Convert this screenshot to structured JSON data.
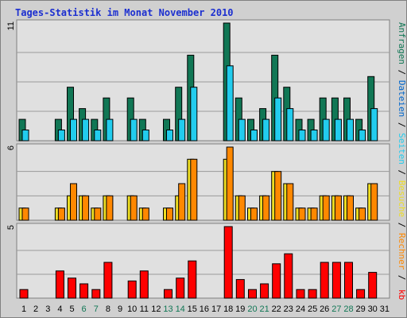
{
  "title": "Tages-Statistik im Monat November 2010",
  "colors": {
    "background": "#d0d0d0",
    "plot": "#e0e0e0",
    "grid": "#9a9a9a",
    "hits": "#117755",
    "files": "#22ccee",
    "pages": "#eedd22",
    "visits": "#ff8800",
    "kb": "#ff0000",
    "weekend": "#117755",
    "weekday": "#000000"
  },
  "right_legend": {
    "top": [
      {
        "text": "Anfragen",
        "color": "#117755"
      },
      {
        "text": " / ",
        "color": "#000000"
      },
      {
        "text": "Dateien",
        "color": "#0066cc"
      },
      {
        "text": " / ",
        "color": "#000000"
      },
      {
        "text": "Seiten",
        "color": "#22ccee"
      },
      {
        "text": " / ",
        "color": "#000000"
      },
      {
        "text": "Besuche",
        "color": "#eedd22"
      },
      {
        "text": " / ",
        "color": "#000000"
      },
      {
        "text": "Rechner",
        "color": "#ff8800"
      },
      {
        "text": " / ",
        "color": "#000000"
      }
    ],
    "bottom": {
      "text": "kb",
      "color": "#ff0000"
    }
  },
  "chart_data": {
    "type": "bar",
    "x": [
      1,
      2,
      3,
      4,
      5,
      6,
      7,
      8,
      9,
      10,
      11,
      12,
      13,
      14,
      15,
      16,
      17,
      18,
      19,
      20,
      21,
      22,
      23,
      24,
      25,
      26,
      27,
      28,
      29,
      30,
      31
    ],
    "weekend_days": [
      6,
      7,
      13,
      14,
      20,
      21,
      27,
      28
    ],
    "panels": [
      {
        "name": "top",
        "ymax_label": "11",
        "ylim": [
          0,
          11
        ],
        "series": [
          {
            "key": "hits",
            "values": [
              2,
              0,
              0,
              2,
              5,
              3,
              2,
              4,
              0,
              4,
              2,
              0,
              2,
              5,
              8,
              0,
              0,
              11,
              4,
              2,
              3,
              8,
              5,
              2,
              2,
              4,
              4,
              4,
              2,
              6,
              0
            ]
          },
          {
            "key": "files",
            "values": [
              1,
              0,
              0,
              1,
              2,
              2,
              1,
              2,
              0,
              2,
              1,
              0,
              1,
              2,
              5,
              0,
              0,
              7,
              2,
              1,
              2,
              4,
              3,
              1,
              1,
              2,
              2,
              2,
              1,
              3,
              0
            ]
          }
        ]
      },
      {
        "name": "middle",
        "ymax_label": "6",
        "ylim": [
          0,
          6
        ],
        "series": [
          {
            "key": "pages",
            "values": [
              1,
              0,
              0,
              1,
              2,
              2,
              1,
              2,
              0,
              2,
              1,
              0,
              1,
              2,
              5,
              0,
              0,
              5,
              2,
              1,
              2,
              4,
              3,
              1,
              1,
              2,
              2,
              2,
              1,
              3,
              0
            ]
          },
          {
            "key": "visits",
            "values": [
              1,
              0,
              0,
              1,
              3,
              2,
              1,
              2,
              0,
              2,
              1,
              0,
              1,
              3,
              5,
              0,
              0,
              6,
              2,
              1,
              2,
              4,
              3,
              1,
              1,
              2,
              2,
              2,
              1,
              3,
              0
            ]
          }
        ]
      },
      {
        "name": "bottom",
        "ymax_label": "5",
        "ylim": [
          0,
          5
        ],
        "series": [
          {
            "key": "kb",
            "values": [
              0.6,
              0,
              0,
              1.9,
              1.4,
              1.0,
              0.6,
              2.5,
              0,
              1.2,
              1.9,
              0,
              0.6,
              1.4,
              2.6,
              0,
              0,
              5,
              1.3,
              0.6,
              1.0,
              2.4,
              3.1,
              0.6,
              0.6,
              2.5,
              2.5,
              2.5,
              0.6,
              1.8,
              0
            ]
          }
        ]
      }
    ]
  }
}
